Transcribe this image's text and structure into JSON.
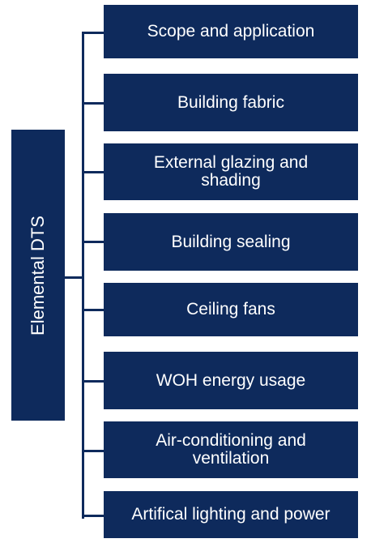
{
  "diagram": {
    "root": {
      "label": "Elemental DTS"
    },
    "children": [
      {
        "label": "Scope and application"
      },
      {
        "label": "Building fabric"
      },
      {
        "label": "External glazing and\nshading"
      },
      {
        "label": "Building sealing"
      },
      {
        "label": "Ceiling fans"
      },
      {
        "label": "WOH energy usage"
      },
      {
        "label": "Air-conditioning and\nventilation"
      },
      {
        "label": "Artifical lighting and power"
      }
    ],
    "colors": {
      "box_fill": "#0e2a5c",
      "text": "#ffffff",
      "connector": "#0e2a5c"
    }
  }
}
